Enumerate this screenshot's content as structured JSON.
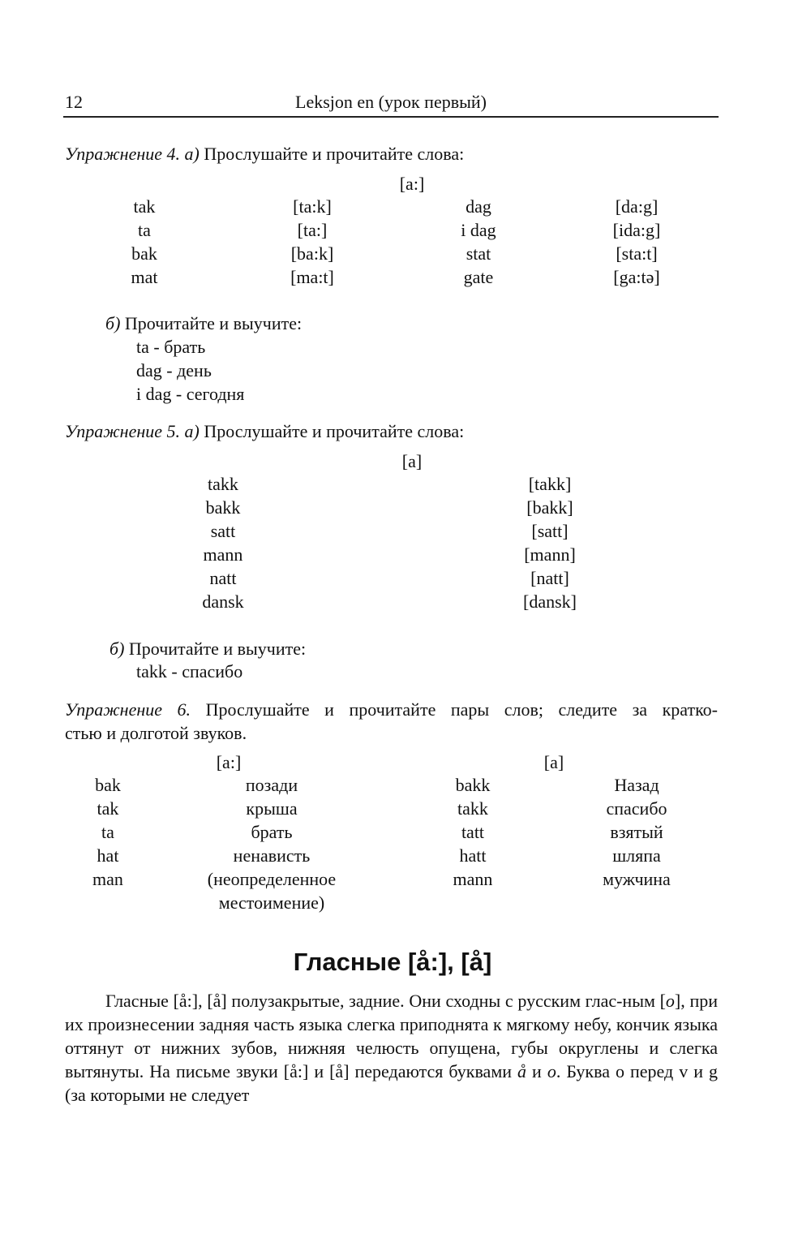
{
  "header": {
    "page_number": "12",
    "title": "Leksjon en (урок первый)"
  },
  "ex4": {
    "label": "Упражнение 4. а)",
    "text": " Прослушайте и прочитайте слова:",
    "sound": "[a:]",
    "rows": [
      [
        "tak",
        "[ta:k]",
        "dag",
        "[da:g]"
      ],
      [
        "ta",
        "[ta:]",
        "i dag",
        "[ida:g]"
      ],
      [
        "bak",
        "[ba:k]",
        "stat",
        "[sta:t]"
      ],
      [
        "mat",
        "[ma:t]",
        "gate",
        "[ga:tə]"
      ]
    ],
    "b_label": "б)",
    "b_text": " Прочитайте и выучите:",
    "learn": [
      "ta - брать",
      "dag - день",
      "i dag - сегодня"
    ]
  },
  "ex5": {
    "label": "Упражнение 5. а)",
    "text": " Прослушайте и прочитайте слова:",
    "sound": "[a]",
    "rows": [
      [
        "takk",
        "[takk]"
      ],
      [
        "bakk",
        "[bakk]"
      ],
      [
        "satt",
        "[satt]"
      ],
      [
        "mann",
        "[mann]"
      ],
      [
        "natt",
        "[natt]"
      ],
      [
        "dansk",
        "[dansk]"
      ]
    ],
    "b_label": "б)",
    "b_text": " Прочитайте и выучите:",
    "learn": [
      "takk - спасибо"
    ]
  },
  "ex6": {
    "label": "Упражнение 6.",
    "text": " Прослушайте и прочитайте пары слов; следите за кратко-",
    "text2": "стью и долготой звуков.",
    "sound_long": "[a:]",
    "sound_short": "[a]",
    "rows": [
      [
        "bak",
        "позади",
        "bakk",
        "Назад"
      ],
      [
        "tak",
        "крыша",
        "takk",
        "спасибо"
      ],
      [
        "ta",
        "брать",
        "tatt",
        "взятый"
      ],
      [
        "hat",
        "ненависть",
        "hatt",
        "шляпа"
      ],
      [
        "man",
        "(неопределенное",
        "mann",
        "мужчина"
      ],
      [
        "",
        "местоимение)",
        "",
        ""
      ]
    ]
  },
  "section": {
    "heading": "Гласные [å:], [å]",
    "p1": "Гласные [å:], [å] полузакрытые, задние. Они сходны с русским глас-ным [",
    "p1_it": "о",
    "p2": "], при их произнесении задняя часть языка слегка приподнята к мягкому небу, кончик языка оттянут от нижних зубов, нижняя челюсть опущена, губы округлены и слегка вытянуты. На письме звуки [å:] и [å] передаются буквами ",
    "p2_it1": "å",
    "p3": " и ",
    "p2_it2": "о",
    "p4": ". Буква о перед v и g  (за которыми не следует"
  }
}
